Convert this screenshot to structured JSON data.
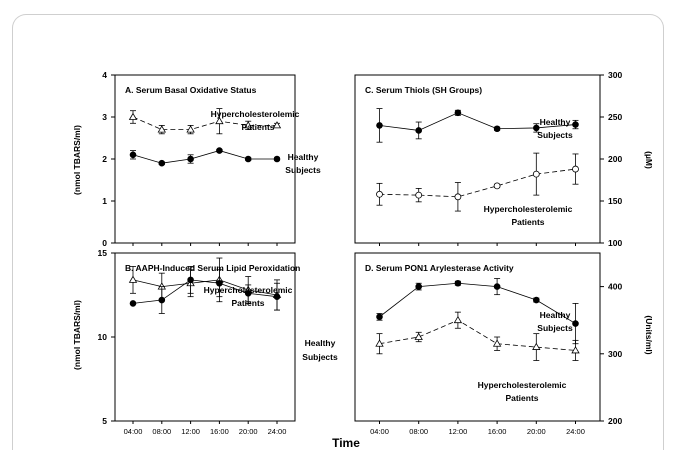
{
  "figure": {
    "xlabel": "Time"
  },
  "chart_data": [
    {
      "id": "A",
      "type": "line",
      "title": "A. Serum Basal Oxidative Status",
      "ylabel": "(nmol TBARS/ml)",
      "ylim": [
        0,
        4
      ],
      "yticks": [
        "0",
        "1",
        "2",
        "3",
        "4"
      ],
      "categories": [
        "04:00",
        "08:00",
        "12:00",
        "16:00",
        "20:00",
        "24:00"
      ],
      "series": [
        {
          "name": "Healthy Subjects",
          "label_lines": [
            "Healthy",
            "Subjects"
          ],
          "marker": "filled-circle",
          "dashed": false,
          "values": [
            2.1,
            1.9,
            2.0,
            2.2,
            2.0,
            2.0
          ],
          "errors": [
            0.1,
            0.03,
            0.1,
            0.03,
            0.03,
            0.03
          ]
        },
        {
          "name": "Hypercholesterolemic Patients",
          "label_lines": [
            "Hypercholesterolemic",
            "Patients"
          ],
          "marker": "open-triangle",
          "dashed": true,
          "values": [
            3.0,
            2.7,
            2.7,
            2.9,
            2.8,
            2.8
          ],
          "errors": [
            0.15,
            0.1,
            0.1,
            0.3,
            0.1,
            0.05
          ]
        }
      ]
    },
    {
      "id": "C",
      "type": "line",
      "title": "C. Serum Thiols (SH Groups)",
      "ylabel": "(µM)",
      "ylim": [
        100,
        300
      ],
      "yticks": [
        "100",
        "150",
        "200",
        "250",
        "300"
      ],
      "categories": [
        "04:00",
        "08:00",
        "12:00",
        "16:00",
        "20:00",
        "24:00"
      ],
      "series": [
        {
          "name": "Healthy Subjects",
          "label_lines": [
            "Healthy",
            "Subjects"
          ],
          "marker": "filled-circle",
          "dashed": false,
          "values": [
            240,
            234,
            255,
            236,
            237,
            241
          ],
          "errors": [
            20,
            10,
            3,
            2,
            5,
            5
          ]
        },
        {
          "name": "Hypercholesterolemic Patients",
          "label_lines": [
            "Hypercholesterolemic",
            "Patients"
          ],
          "marker": "open-circle",
          "dashed": true,
          "values": [
            158,
            157,
            155,
            168,
            182,
            188
          ],
          "errors": [
            13,
            8,
            17,
            2,
            25,
            18
          ]
        }
      ]
    },
    {
      "id": "B",
      "type": "line",
      "title": "B. AAPH-Induced Serum Lipid Peroxidation",
      "ylabel": "(nmol TBARS/ml)",
      "ylim": [
        5,
        15
      ],
      "yticks": [
        "5",
        "10",
        "15"
      ],
      "categories": [
        "04:00",
        "08:00",
        "12:00",
        "16:00",
        "20:00",
        "24:00"
      ],
      "series": [
        {
          "name": "Hypercholesterolemic Patients",
          "label_lines": [
            "Hypercholesterolemic",
            "Patients"
          ],
          "marker": "open-triangle",
          "dashed": false,
          "values": [
            13.4,
            13.0,
            13.2,
            13.4,
            12.8,
            12.5
          ],
          "errors": [
            0.8,
            0.8,
            0.8,
            1.3,
            0.8,
            0.9
          ]
        },
        {
          "name": "Healthy Subjects",
          "label_lines": [
            "Healthy",
            "Subjects"
          ],
          "marker": "filled-circle",
          "dashed": false,
          "values": [
            12.0,
            12.2,
            13.4,
            13.2,
            12.6,
            12.4
          ],
          "errors": [
            0.05,
            0.8,
            0.8,
            0.8,
            0.5,
            0.8
          ]
        }
      ]
    },
    {
      "id": "D",
      "type": "line",
      "title": "D. Serum PON1 Arylesterase Activity",
      "ylabel": "(Units/ml)",
      "ylim": [
        200,
        450
      ],
      "yticks": [
        "200",
        "300",
        "400"
      ],
      "categories": [
        "04:00",
        "08:00",
        "12:00",
        "16:00",
        "20:00",
        "24:00"
      ],
      "series": [
        {
          "name": "Healthy Subjects",
          "label_lines": [
            "Healthy",
            "Subjects"
          ],
          "marker": "filled-circle",
          "dashed": false,
          "values": [
            355,
            400,
            405,
            400,
            380,
            345
          ],
          "errors": [
            5,
            5,
            3,
            12,
            3,
            30
          ]
        },
        {
          "name": "Hypercholesterolemic Patients",
          "label_lines": [
            "Hypercholesterolemic",
            "Patients"
          ],
          "marker": "open-triangle",
          "dashed": true,
          "values": [
            315,
            325,
            350,
            315,
            310,
            305
          ],
          "errors": [
            15,
            7,
            12,
            10,
            20,
            15
          ]
        }
      ]
    }
  ]
}
